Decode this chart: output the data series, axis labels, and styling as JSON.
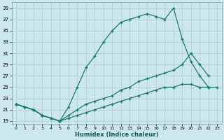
{
  "xlabel": "Humidex (Indice chaleur)",
  "bg_color": "#cce8ec",
  "grid_color": "#aacccc",
  "line_color": "#1a7a6a",
  "xlim": [
    -0.5,
    23.5
  ],
  "ylim": [
    18.5,
    40
  ],
  "xticks": [
    0,
    1,
    2,
    3,
    4,
    5,
    6,
    7,
    8,
    9,
    10,
    11,
    12,
    13,
    14,
    15,
    16,
    17,
    18,
    19,
    20,
    21,
    22,
    23
  ],
  "yticks": [
    19,
    21,
    23,
    25,
    27,
    29,
    31,
    33,
    35,
    37,
    39
  ],
  "s1_x": [
    0,
    1,
    2,
    3,
    4,
    5,
    6,
    7,
    8,
    9,
    10,
    11,
    12,
    13,
    14,
    15,
    16,
    17,
    18,
    19,
    20,
    21,
    22
  ],
  "s1_y": [
    22,
    21.5,
    21,
    20,
    19.5,
    19,
    21.5,
    25,
    28.5,
    30.5,
    33,
    35,
    36.5,
    37,
    37.5,
    38,
    37.5,
    37,
    39,
    33.5,
    29.5,
    27,
    25
  ],
  "s2_x": [
    0,
    1,
    2,
    3,
    4,
    5,
    6,
    7,
    8,
    9,
    10,
    11,
    12,
    13,
    14,
    15,
    16,
    17,
    18,
    19,
    20,
    21,
    22
  ],
  "s2_y": [
    22,
    21.5,
    21,
    20,
    19.5,
    19,
    20,
    21,
    22,
    22.5,
    23,
    23.5,
    24.5,
    25,
    26,
    26.5,
    27,
    27.5,
    28,
    29,
    31,
    29,
    27
  ],
  "s3_x": [
    0,
    1,
    2,
    3,
    4,
    5,
    6,
    7,
    8,
    9,
    10,
    11,
    12,
    13,
    14,
    15,
    16,
    17,
    18,
    19,
    20,
    21,
    22,
    23
  ],
  "s3_y": [
    22,
    21.5,
    21,
    20,
    19.5,
    19,
    19.5,
    20,
    20.5,
    21,
    21.5,
    22,
    22.5,
    23,
    23.5,
    24,
    24.5,
    25,
    25,
    25.5,
    25.5,
    25,
    25,
    25
  ]
}
